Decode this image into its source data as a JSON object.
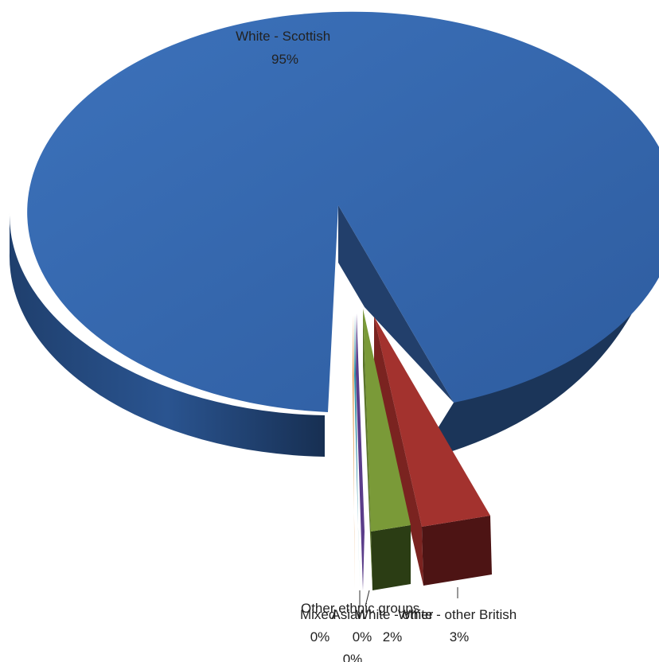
{
  "chart_data": {
    "type": "pie",
    "style": "3d-exploded",
    "slices": [
      {
        "label": "White - Scottish",
        "value": 95,
        "display": "95%",
        "color": "#3567ae"
      },
      {
        "label": "White - other British",
        "value": 3,
        "display": "3%",
        "color": "#a3322e"
      },
      {
        "label": "White - other",
        "value": 2,
        "display": "2%",
        "color": "#7a9a38"
      },
      {
        "label": "Asian",
        "value": 0.3,
        "display": "0%",
        "color": "#5b3d8a"
      },
      {
        "label": "Other ethnic groups",
        "value": 0.2,
        "display": "0%",
        "color": "#2f8fa6"
      },
      {
        "label": "Mixed",
        "value": 0.1,
        "display": "0%",
        "color": "#d9832a"
      }
    ]
  }
}
